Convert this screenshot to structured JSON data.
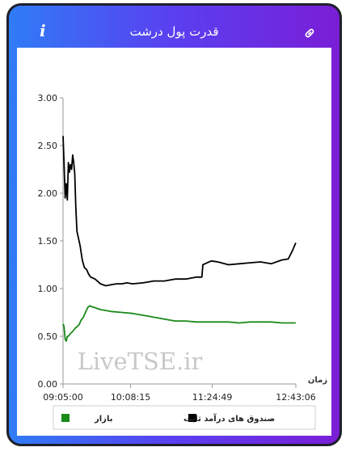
{
  "header": {
    "title": "قدرت پول درشت",
    "info_icon": "info-icon",
    "link_icon": "link-icon",
    "gradient": [
      "#2f7cf6",
      "#7a1ed6"
    ]
  },
  "watermark": "LiveTSE.ir",
  "chart_data": {
    "type": "line",
    "x_axis_title": "زمان",
    "x_ticks": [
      "09:05:00",
      "10:08:15",
      "11:24:49",
      "12:43:06"
    ],
    "y_ticks": [
      "0.00",
      "0.50",
      "1.00",
      "1.50",
      "2.00",
      "2.50",
      "3.00"
    ],
    "ylim": [
      0,
      3
    ],
    "grid": false,
    "legend_position": "bottom",
    "series": [
      {
        "name": "صندوق های درآمد ثابت",
        "color": "#000000",
        "x": [
          "09:05",
          "09:06",
          "09:07",
          "09:08",
          "09:09",
          "09:10",
          "09:11",
          "09:12",
          "09:13",
          "09:14",
          "09:15",
          "09:16",
          "09:17",
          "09:18",
          "09:19",
          "09:21",
          "09:23",
          "09:25",
          "09:27",
          "09:29",
          "09:31",
          "09:35",
          "09:40",
          "09:45",
          "09:50",
          "09:55",
          "10:00",
          "10:05",
          "10:10",
          "10:20",
          "10:30",
          "10:40",
          "10:50",
          "11:00",
          "11:10",
          "11:15",
          "11:16",
          "11:20",
          "11:24",
          "11:30",
          "11:40",
          "11:50",
          "12:00",
          "12:10",
          "12:20",
          "12:30",
          "12:36",
          "12:40",
          "12:43"
        ],
        "values": [
          2.6,
          2.3,
          1.95,
          2.1,
          1.93,
          2.32,
          2.22,
          2.3,
          2.25,
          2.4,
          2.32,
          2.2,
          1.85,
          1.6,
          1.55,
          1.45,
          1.3,
          1.22,
          1.2,
          1.15,
          1.12,
          1.1,
          1.05,
          1.03,
          1.04,
          1.05,
          1.05,
          1.06,
          1.05,
          1.06,
          1.08,
          1.08,
          1.1,
          1.1,
          1.12,
          1.12,
          1.25,
          1.27,
          1.29,
          1.28,
          1.25,
          1.26,
          1.27,
          1.28,
          1.26,
          1.3,
          1.31,
          1.4,
          1.48
        ]
      },
      {
        "name": "بازار",
        "color": "#1a8a1a",
        "x": [
          "09:05",
          "09:06",
          "09:07",
          "09:08",
          "09:09",
          "09:10",
          "09:12",
          "09:14",
          "09:16",
          "09:18",
          "09:20",
          "09:22",
          "09:24",
          "09:26",
          "09:28",
          "09:30",
          "09:32",
          "09:35",
          "09:40",
          "09:45",
          "09:50",
          "10:00",
          "10:10",
          "10:20",
          "10:30",
          "10:40",
          "10:50",
          "11:00",
          "11:10",
          "11:20",
          "11:30",
          "11:40",
          "11:50",
          "12:00",
          "12:10",
          "12:20",
          "12:30",
          "12:43"
        ],
        "values": [
          0.63,
          0.6,
          0.47,
          0.45,
          0.5,
          0.5,
          0.53,
          0.55,
          0.58,
          0.6,
          0.62,
          0.67,
          0.7,
          0.75,
          0.8,
          0.82,
          0.81,
          0.8,
          0.78,
          0.77,
          0.76,
          0.75,
          0.74,
          0.72,
          0.7,
          0.68,
          0.66,
          0.66,
          0.65,
          0.65,
          0.65,
          0.65,
          0.64,
          0.65,
          0.65,
          0.65,
          0.64,
          0.64
        ]
      }
    ]
  }
}
